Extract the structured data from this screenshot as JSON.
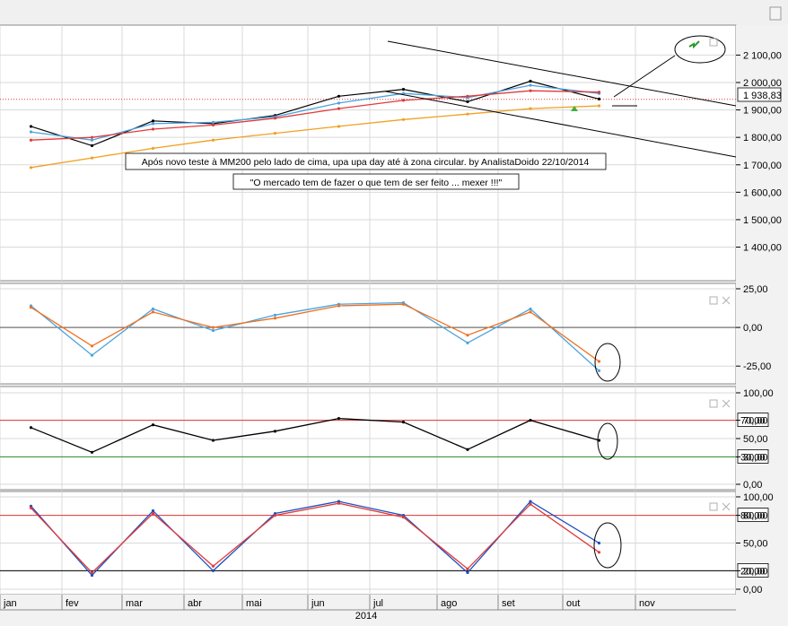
{
  "colors": {
    "background": "#ffffff",
    "grid": "#d9d9d9",
    "price": "#000000",
    "ema_fast": "#4aa3df",
    "ema_mid": "#e03a3a",
    "mm200": "#f0a020",
    "macd_line": "#4aa3df",
    "signal_line": "#f07020",
    "ref_red": "#e03a3a",
    "ref_green": "#2e8b2e",
    "stoch_k": "#1f4fbf",
    "stoch_d": "#e03a3a"
  },
  "annotations": {
    "note1": "Após novo teste à MM200 pelo lado de cima, upa upa day até à zona circular. by AnalistaDoido 22/10/2014",
    "note2": "\"O mercado tem de fazer o que tem de ser feito ... mexer !!!\""
  },
  "x_axis": {
    "months": [
      "jan",
      "fev",
      "mar",
      "abr",
      "mai",
      "jun",
      "jul",
      "ago",
      "set",
      "out",
      "nov"
    ],
    "year": "2014"
  },
  "chart_data": [
    {
      "type": "line",
      "panel": "price",
      "y_ticks": [
        "2 100,00",
        "2 000,00",
        "1 900,00",
        "1 800,00",
        "1 700,00",
        "1 600,00",
        "1 500,00",
        "1 400,00"
      ],
      "ylim": [
        1320,
        2170
      ],
      "last_value_label": "1 938,83",
      "x": [
        "jan",
        "fev",
        "mar",
        "abr",
        "mai",
        "jun",
        "jul",
        "ago",
        "set",
        "out"
      ],
      "series": [
        {
          "values": [
            1840,
            1770,
            1860,
            1850,
            1880,
            1950,
            1975,
            1930,
            2005,
            1940
          ]
        },
        {
          "values": [
            1820,
            1790,
            1850,
            1855,
            1875,
            1925,
            1960,
            1945,
            1990,
            1960
          ]
        },
        {
          "values": [
            1790,
            1800,
            1830,
            1845,
            1870,
            1905,
            1935,
            1950,
            1970,
            1965
          ]
        },
        {
          "values": [
            1690,
            1725,
            1760,
            1790,
            1815,
            1840,
            1865,
            1885,
            1905,
            1915
          ]
        }
      ]
    },
    {
      "type": "line",
      "panel": "macd",
      "y_ticks": [
        "25,00",
        "0,00",
        "-25,00"
      ],
      "ylim": [
        -33,
        25
      ],
      "x": [
        "jan",
        "fev",
        "mar",
        "abr",
        "mai",
        "jun",
        "jul",
        "ago",
        "set",
        "out"
      ],
      "series": [
        {
          "values": [
            14,
            -18,
            12,
            -2,
            8,
            15,
            16,
            -10,
            12,
            -28
          ]
        },
        {
          "values": [
            13,
            -12,
            10,
            0,
            6,
            14,
            15,
            -5,
            10,
            -22
          ]
        }
      ]
    },
    {
      "type": "line",
      "panel": "rsi",
      "y_ticks": [
        "100,00",
        "70,00",
        "50,00",
        "30,00",
        "0,00"
      ],
      "ylim": [
        0,
        100
      ],
      "reference_lines": [
        "70,00",
        "30,00"
      ],
      "x": [
        "jan",
        "fev",
        "mar",
        "abr",
        "mai",
        "jun",
        "jul",
        "ago",
        "set",
        "out"
      ],
      "series": [
        {
          "values": [
            62,
            35,
            65,
            48,
            58,
            72,
            68,
            38,
            70,
            48
          ]
        }
      ]
    },
    {
      "type": "line",
      "panel": "stochastic",
      "y_ticks": [
        "100,00",
        "80,00",
        "50,00",
        "20,00",
        "0,00"
      ],
      "ylim": [
        0,
        100
      ],
      "reference_lines": [
        "80,00",
        "20,00"
      ],
      "x": [
        "jan",
        "fev",
        "mar",
        "abr",
        "mai",
        "jun",
        "jul",
        "ago",
        "set",
        "out"
      ],
      "series": [
        {
          "values": [
            90,
            15,
            85,
            20,
            82,
            95,
            80,
            18,
            95,
            50
          ]
        },
        {
          "values": [
            88,
            18,
            82,
            25,
            80,
            93,
            78,
            22,
            92,
            40
          ]
        }
      ]
    }
  ]
}
